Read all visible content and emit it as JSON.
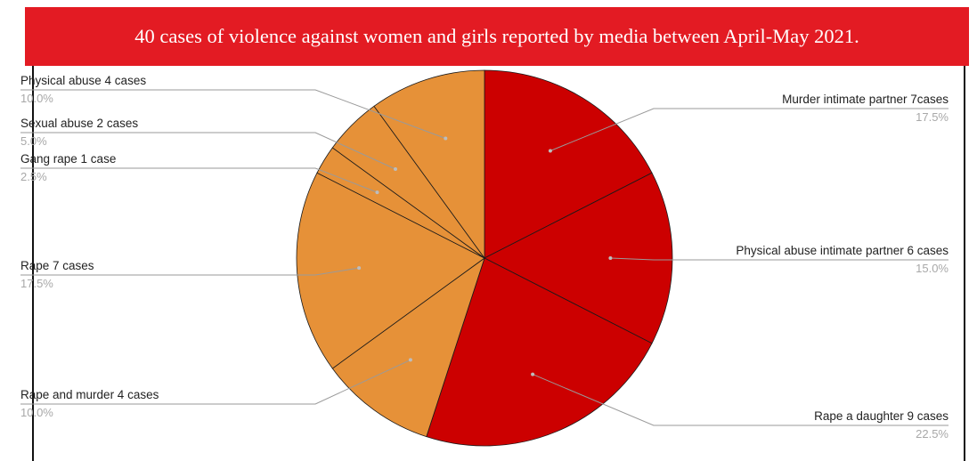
{
  "chart_data": {
    "type": "pie",
    "title": "40 cases of violence against women and girls reported by media between April-May 2021.",
    "slices": [
      {
        "label": "Murder intimate partner 7cases",
        "percent": "17.5%",
        "value": 7,
        "color": "#cc0000"
      },
      {
        "label": "Physical abuse intimate partner 6 cases",
        "percent": "15.0%",
        "value": 6,
        "color": "#cc0000"
      },
      {
        "label": "Rape a daughter 9 cases",
        "percent": "22.5%",
        "value": 9,
        "color": "#cc0000"
      },
      {
        "label": "Rape and murder 4 cases",
        "percent": "10.0%",
        "value": 4,
        "color": "#e69138"
      },
      {
        "label": "Rape 7 cases",
        "percent": "17.5%",
        "value": 7,
        "color": "#e69138"
      },
      {
        "label": "Gang rape 1 case",
        "percent": "2.5%",
        "value": 1,
        "color": "#e69138"
      },
      {
        "label": "Sexual abuse 2 cases",
        "percent": "5.0%",
        "value": 2,
        "color": "#e69138"
      },
      {
        "label": "Physical abuse 4 cases",
        "percent": "10.0%",
        "value": 4,
        "color": "#e69138"
      }
    ]
  }
}
